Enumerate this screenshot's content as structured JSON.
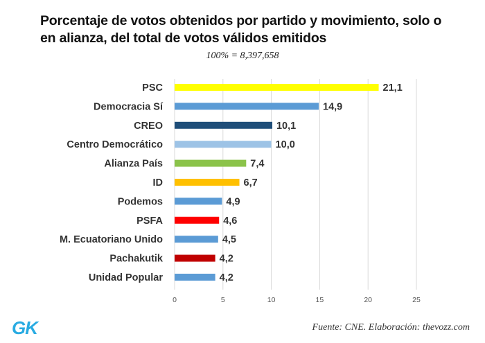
{
  "chart_data": {
    "type": "bar",
    "orientation": "horizontal",
    "title": "Porcentaje de votos obtenidos por partido y movimiento, solo o en alianza, del total de votos válidos emitidos",
    "subtitle": "100% = 8,397,658",
    "categories": [
      "PSC",
      "Democracia Sí",
      "CREO",
      "Centro Democrático",
      "Alianza País",
      "ID",
      "Podemos",
      "PSFA",
      "M. Ecuatoriano Unido",
      "Pachakutik",
      "Unidad Popular"
    ],
    "values": [
      21.1,
      14.9,
      10.1,
      10.0,
      7.4,
      6.7,
      4.9,
      4.6,
      4.5,
      4.2,
      4.2
    ],
    "value_labels": [
      "21,1",
      "14,9",
      "10,1",
      "10,0",
      "7,4",
      "6,7",
      "4,9",
      "4,6",
      "4,5",
      "4,2",
      "4,2"
    ],
    "colors": [
      "#ffff00",
      "#5b9bd5",
      "#1f4e79",
      "#9dc3e6",
      "#8bc34a",
      "#ffc000",
      "#5b9bd5",
      "#ff0000",
      "#5b9bd5",
      "#c00000",
      "#5b9bd5"
    ],
    "xlim": [
      0,
      25
    ],
    "xticks": [
      0,
      5,
      10,
      15,
      20,
      25
    ],
    "xlabel": "",
    "ylabel": "",
    "grid": true
  },
  "logo": {
    "text": "GK",
    "color": "#29abe2"
  },
  "footer": {
    "source": "Fuente: CNE. Elaboración: thevozz.com"
  }
}
